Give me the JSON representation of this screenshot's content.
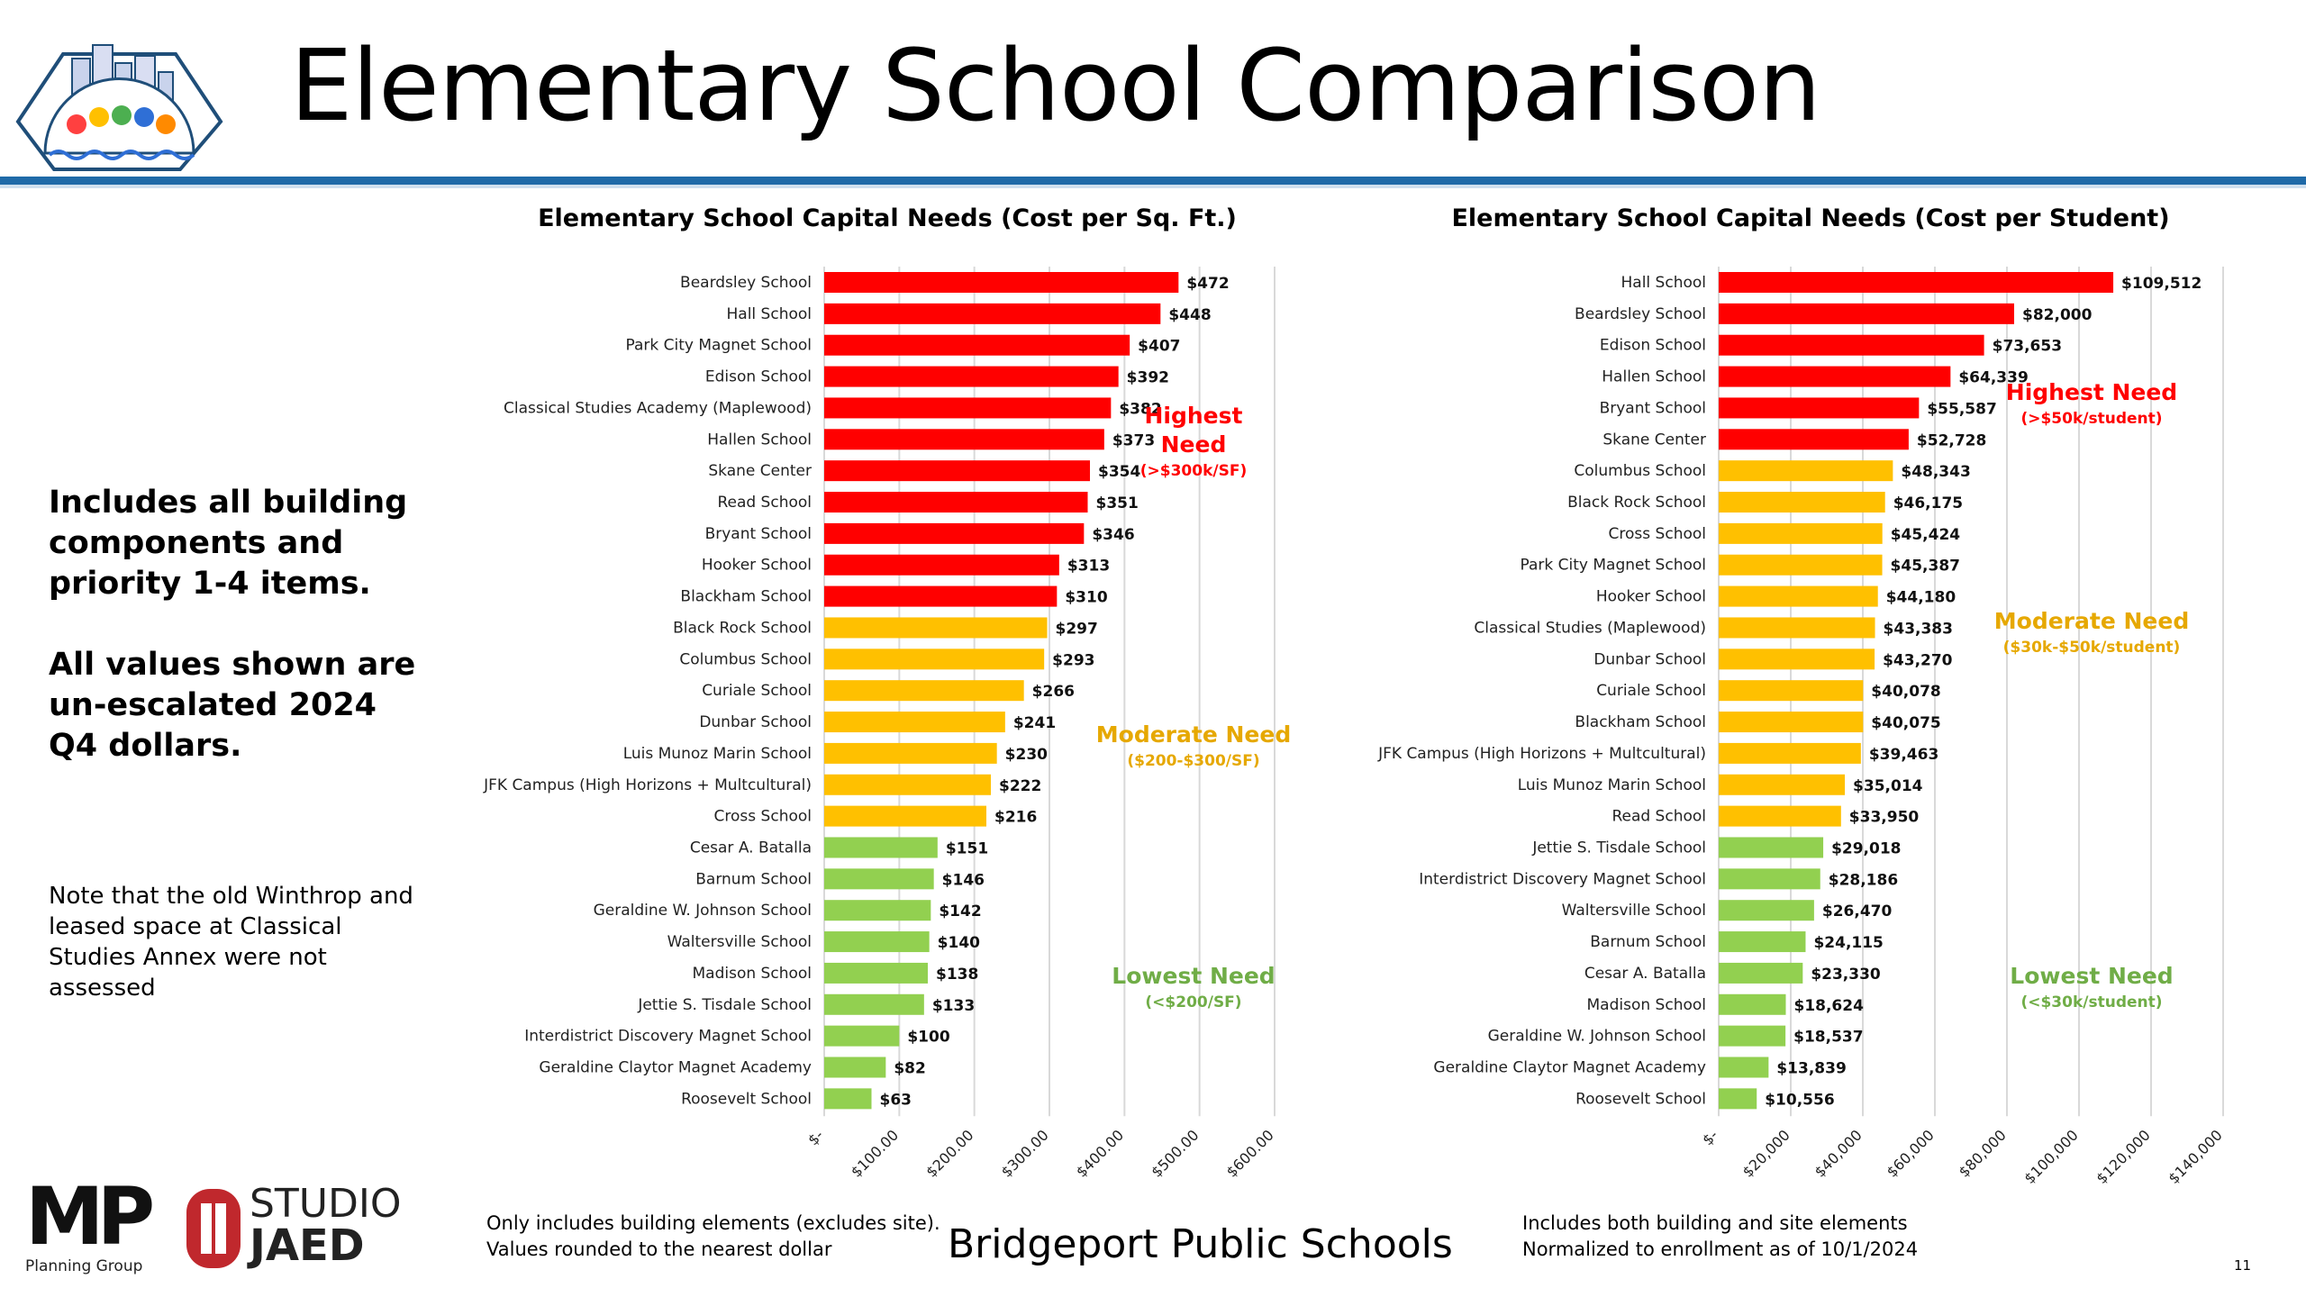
{
  "header": {
    "title": "Elementary School Comparison",
    "accent_color": "#1f6aa8"
  },
  "notes": {
    "components": "Includes all building components and priority 1-4 items.",
    "dollars": "All values shown are un-escalated 2024 Q4 dollars.",
    "assessment": "Note that the old Winthrop and leased space at Classical Studies Annex were not assessed"
  },
  "colors": {
    "high": "#ff0000",
    "moderate": "#ffc000",
    "low": "#92d050",
    "high_text": "#ff0000",
    "moderate_text": "#e6a800",
    "low_text": "#70ad47"
  },
  "chart_data": [
    {
      "type": "bar",
      "orientation": "horizontal",
      "title": "Elementary School Capital Needs (Cost per Sq. Ft.)",
      "xlim": [
        0,
        600
      ],
      "xticks": [
        0,
        100,
        200,
        300,
        400,
        500,
        600
      ],
      "xtick_labels": [
        "$-",
        "$100.00",
        "$200.00",
        "$300.00",
        "$400.00",
        "$500.00",
        "$600.00"
      ],
      "grid": true,
      "categories": [
        "Beardsley School",
        "Hall School",
        "Park City Magnet School",
        "Edison School",
        "Classical Studies Academy (Maplewood)",
        "Hallen School",
        "Skane Center",
        "Read School",
        "Bryant School",
        "Hooker School",
        "Blackham School",
        "Black Rock School",
        "Columbus School",
        "Curiale School",
        "Dunbar School",
        "Luis Munoz Marin School",
        "JFK Campus (High Horizons + Multcultural)",
        "Cross School",
        "Cesar A. Batalla",
        "Barnum School",
        "Geraldine W. Johnson School",
        "Waltersville School",
        "Madison School",
        "Jettie S. Tisdale School",
        "Interdistrict Discovery Magnet School",
        "Geraldine Claytor Magnet Academy",
        "Roosevelt School"
      ],
      "values": [
        472,
        448,
        407,
        392,
        382,
        373,
        354,
        351,
        346,
        313,
        310,
        297,
        293,
        266,
        241,
        230,
        222,
        216,
        151,
        146,
        142,
        140,
        138,
        133,
        100,
        82,
        63
      ],
      "value_labels": [
        "$472",
        "$448",
        "$407",
        "$392",
        "$382",
        "$373",
        "$354",
        "$351",
        "$346",
        "$313",
        "$310",
        "$297",
        "$293",
        "$266",
        "$241",
        "$230",
        "$222",
        "$216",
        "$151",
        "$146",
        "$142",
        "$140",
        "$138",
        "$133",
        "$100",
        "$82",
        "$63"
      ],
      "tiers": [
        "high",
        "high",
        "high",
        "high",
        "high",
        "high",
        "high",
        "high",
        "high",
        "high",
        "high",
        "moderate",
        "moderate",
        "moderate",
        "moderate",
        "moderate",
        "moderate",
        "moderate",
        "low",
        "low",
        "low",
        "low",
        "low",
        "low",
        "low",
        "low",
        "low"
      ],
      "annotations": [
        {
          "tier": "high",
          "lines": [
            "Highest",
            "Need"
          ],
          "sub": "(>$300k/SF)"
        },
        {
          "tier": "moderate",
          "lines": [
            "Moderate Need"
          ],
          "sub": "($200-$300/SF)"
        },
        {
          "tier": "low",
          "lines": [
            "Lowest Need"
          ],
          "sub": "(<$200/SF)"
        }
      ],
      "footnote": [
        "Only includes building elements (excludes site).",
        "Values rounded to the nearest dollar"
      ]
    },
    {
      "type": "bar",
      "orientation": "horizontal",
      "title": "Elementary School Capital Needs (Cost per Student)",
      "xlim": [
        0,
        140000
      ],
      "xticks": [
        0,
        20000,
        40000,
        60000,
        80000,
        100000,
        120000,
        140000
      ],
      "xtick_labels": [
        "$-",
        "$20,000",
        "$40,000",
        "$60,000",
        "$80,000",
        "$100,000",
        "$120,000",
        "$140,000"
      ],
      "grid": true,
      "categories": [
        "Hall School",
        "Beardsley School",
        "Edison School",
        "Hallen School",
        "Bryant School",
        "Skane Center",
        "Columbus School",
        "Black Rock School",
        "Cross School",
        "Park City Magnet School",
        "Hooker School",
        "Classical Studies (Maplewood)",
        "Dunbar School",
        "Curiale School",
        "Blackham School",
        "JFK Campus (High Horizons + Multcultural)",
        "Luis Munoz Marin School",
        "Read School",
        "Jettie S. Tisdale School",
        "Interdistrict Discovery Magnet School",
        "Waltersville School",
        "Barnum School",
        "Cesar A. Batalla",
        "Madison School",
        "Geraldine W. Johnson School",
        "Geraldine Claytor Magnet Academy",
        "Roosevelt School"
      ],
      "values": [
        109512,
        82000,
        73653,
        64339,
        55587,
        52728,
        48343,
        46175,
        45424,
        45387,
        44180,
        43383,
        43270,
        40078,
        40075,
        39463,
        35014,
        33950,
        29018,
        28186,
        26470,
        24115,
        23330,
        18624,
        18537,
        13839,
        10556
      ],
      "value_labels": [
        "$109,512",
        "$82,000",
        "$73,653",
        "$64,339",
        "$55,587",
        "$52,728",
        "$48,343",
        "$46,175",
        "$45,424",
        "$45,387",
        "$44,180",
        "$43,383",
        "$43,270",
        "$40,078",
        "$40,075",
        "$39,463",
        "$35,014",
        "$33,950",
        "$29,018",
        "$28,186",
        "$26,470",
        "$24,115",
        "$23,330",
        "$18,624",
        "$18,537",
        "$13,839",
        "$10,556"
      ],
      "tiers": [
        "high",
        "high",
        "high",
        "high",
        "high",
        "high",
        "moderate",
        "moderate",
        "moderate",
        "moderate",
        "moderate",
        "moderate",
        "moderate",
        "moderate",
        "moderate",
        "moderate",
        "moderate",
        "moderate",
        "low",
        "low",
        "low",
        "low",
        "low",
        "low",
        "low",
        "low",
        "low"
      ],
      "annotations": [
        {
          "tier": "high",
          "lines": [
            "Highest Need"
          ],
          "sub": "(>$50k/student)"
        },
        {
          "tier": "moderate",
          "lines": [
            "Moderate Need"
          ],
          "sub": "($30k-$50k/student)"
        },
        {
          "tier": "low",
          "lines": [
            "Lowest Need"
          ],
          "sub": "(<$30k/student)"
        }
      ],
      "footnote": [
        "Includes both building and site elements",
        "Normalized to enrollment as of 10/1/2024"
      ]
    }
  ],
  "footer": {
    "organization": "Bridgeport Public Schools",
    "page_number": "11",
    "mp_logo_text": "MP",
    "mp_logo_sub": "Planning Group",
    "jaed_logo_top": "STUDIO",
    "jaed_logo_bottom": "JAED"
  }
}
